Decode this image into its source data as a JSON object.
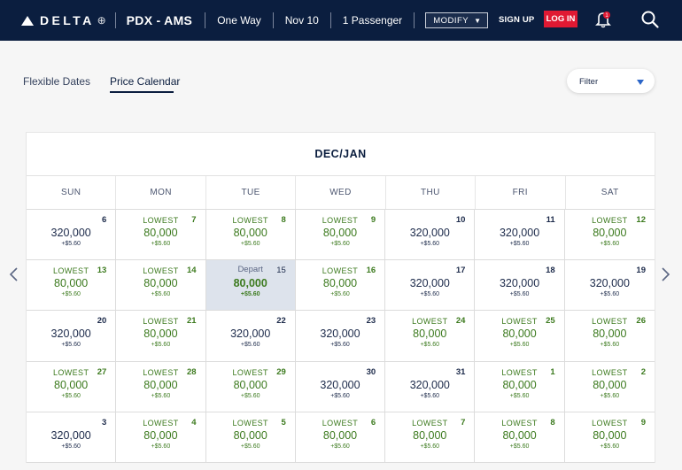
{
  "header": {
    "brand": "DELTA",
    "route": "PDX - AMS",
    "trip_type": "One Way",
    "date": "Nov 10",
    "passengers": "1 Passenger",
    "modify_label": "MODIFY",
    "signup_label": "SIGN UP",
    "login_label": "LOG IN",
    "notification_count": "1",
    "colors": {
      "bar": "#0b1e3f",
      "login": "#e01933"
    }
  },
  "tabs": {
    "flexible": "Flexible Dates",
    "calendar": "Price Calendar"
  },
  "filter": {
    "label": "Filter"
  },
  "calendar": {
    "month": "DEC/JAN",
    "days_of_week": [
      "SUN",
      "MON",
      "TUE",
      "WED",
      "THU",
      "FRI",
      "SAT"
    ],
    "weeks": [
      [
        {
          "day": "6",
          "tag": "",
          "price": "320,000",
          "fee": "+$5.60",
          "lowest": false
        },
        {
          "day": "7",
          "tag": "LOWEST",
          "price": "80,000",
          "fee": "+$5.60",
          "lowest": true
        },
        {
          "day": "8",
          "tag": "LOWEST",
          "price": "80,000",
          "fee": "+$5.60",
          "lowest": true
        },
        {
          "day": "9",
          "tag": "LOWEST",
          "price": "80,000",
          "fee": "+$5.60",
          "lowest": true
        },
        {
          "day": "10",
          "tag": "",
          "price": "320,000",
          "fee": "+$5.60",
          "lowest": false
        },
        {
          "day": "11",
          "tag": "",
          "price": "320,000",
          "fee": "+$5.60",
          "lowest": false
        },
        {
          "day": "12",
          "tag": "LOWEST",
          "price": "80,000",
          "fee": "+$5.60",
          "lowest": true
        }
      ],
      [
        {
          "day": "13",
          "tag": "LOWEST",
          "price": "80,000",
          "fee": "+$5.60",
          "lowest": true
        },
        {
          "day": "14",
          "tag": "LOWEST",
          "price": "80,000",
          "fee": "+$5.60",
          "lowest": true
        },
        {
          "day": "15",
          "tag": "Depart",
          "price": "80,000",
          "fee": "+$5.60",
          "lowest": true,
          "selected": true
        },
        {
          "day": "16",
          "tag": "LOWEST",
          "price": "80,000",
          "fee": "+$5.60",
          "lowest": true
        },
        {
          "day": "17",
          "tag": "",
          "price": "320,000",
          "fee": "+$5.60",
          "lowest": false
        },
        {
          "day": "18",
          "tag": "",
          "price": "320,000",
          "fee": "+$5.60",
          "lowest": false
        },
        {
          "day": "19",
          "tag": "",
          "price": "320,000",
          "fee": "+$5.60",
          "lowest": false
        }
      ],
      [
        {
          "day": "20",
          "tag": "",
          "price": "320,000",
          "fee": "+$5.60",
          "lowest": false
        },
        {
          "day": "21",
          "tag": "LOWEST",
          "price": "80,000",
          "fee": "+$5.60",
          "lowest": true
        },
        {
          "day": "22",
          "tag": "",
          "price": "320,000",
          "fee": "+$5.60",
          "lowest": false
        },
        {
          "day": "23",
          "tag": "",
          "price": "320,000",
          "fee": "+$5.60",
          "lowest": false
        },
        {
          "day": "24",
          "tag": "LOWEST",
          "price": "80,000",
          "fee": "+$5.60",
          "lowest": true
        },
        {
          "day": "25",
          "tag": "LOWEST",
          "price": "80,000",
          "fee": "+$5.60",
          "lowest": true
        },
        {
          "day": "26",
          "tag": "LOWEST",
          "price": "80,000",
          "fee": "+$5.60",
          "lowest": true
        }
      ],
      [
        {
          "day": "27",
          "tag": "LOWEST",
          "price": "80,000",
          "fee": "+$5.60",
          "lowest": true
        },
        {
          "day": "28",
          "tag": "LOWEST",
          "price": "80,000",
          "fee": "+$5.60",
          "lowest": true
        },
        {
          "day": "29",
          "tag": "LOWEST",
          "price": "80,000",
          "fee": "+$5.60",
          "lowest": true
        },
        {
          "day": "30",
          "tag": "",
          "price": "320,000",
          "fee": "+$5.60",
          "lowest": false
        },
        {
          "day": "31",
          "tag": "",
          "price": "320,000",
          "fee": "+$5.60",
          "lowest": false
        },
        {
          "day": "1",
          "tag": "LOWEST",
          "price": "80,000",
          "fee": "+$5.60",
          "lowest": true
        },
        {
          "day": "2",
          "tag": "LOWEST",
          "price": "80,000",
          "fee": "+$5.60",
          "lowest": true
        }
      ],
      [
        {
          "day": "3",
          "tag": "",
          "price": "320,000",
          "fee": "+$5.60",
          "lowest": false
        },
        {
          "day": "4",
          "tag": "LOWEST",
          "price": "80,000",
          "fee": "+$5.60",
          "lowest": true
        },
        {
          "day": "5",
          "tag": "LOWEST",
          "price": "80,000",
          "fee": "+$5.60",
          "lowest": true
        },
        {
          "day": "6",
          "tag": "LOWEST",
          "price": "80,000",
          "fee": "+$5.60",
          "lowest": true
        },
        {
          "day": "7",
          "tag": "LOWEST",
          "price": "80,000",
          "fee": "+$5.60",
          "lowest": true
        },
        {
          "day": "8",
          "tag": "LOWEST",
          "price": "80,000",
          "fee": "+$5.60",
          "lowest": true
        },
        {
          "day": "9",
          "tag": "LOWEST",
          "price": "80,000",
          "fee": "+$5.60",
          "lowest": true
        }
      ]
    ]
  }
}
